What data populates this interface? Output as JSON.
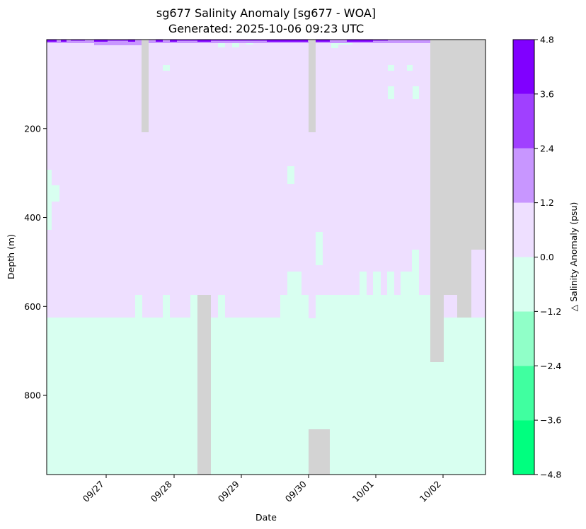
{
  "chart_data": {
    "type": "heatmap",
    "title": "sg677 Salinity Anomaly [sg677 - WOA]",
    "subtitle": "Generated: 2025-10-06 09:23 UTC",
    "xlabel": "Date",
    "ylabel": "Depth (m)",
    "colorbar_label": "△ Salinity Anomaly (psu)",
    "x_tick_labels": [
      "09/27",
      "09/28",
      "09/29",
      "09/30",
      "10/01",
      "10/02"
    ],
    "y_ticks": [
      200,
      400,
      600,
      800
    ],
    "y_axis_inverted": true,
    "ylim": [
      978,
      0
    ],
    "color_levels": [
      -4.8,
      -3.6,
      -2.4,
      -1.2,
      0.0,
      1.2,
      2.4,
      3.6,
      4.8
    ],
    "color_level_labels": [
      "−4.8",
      "−3.6",
      "−2.4",
      "−1.2",
      "0.0",
      "1.2",
      "2.4",
      "3.6",
      "4.8"
    ],
    "colors": [
      "#00ff7f",
      "#40ffa0",
      "#90ffc8",
      "#d8fff0",
      "#eedfff",
      "#c896ff",
      "#a040ff",
      "#8000ff"
    ],
    "no_data_color": "#d3d3d3",
    "regions": [
      {
        "depth_top_m": 0,
        "depth_bottom_m": 625,
        "anomaly_bin": "0.0 to 1.2"
      },
      {
        "depth_top_m": 625,
        "depth_bottom_m": 978,
        "anomaly_bin": "−1.2 to 0.0"
      },
      {
        "depth_top_m": 0,
        "depth_bottom_m": 10,
        "anomaly_bin": "1.2 to 4.8"
      }
    ],
    "grid": false
  }
}
